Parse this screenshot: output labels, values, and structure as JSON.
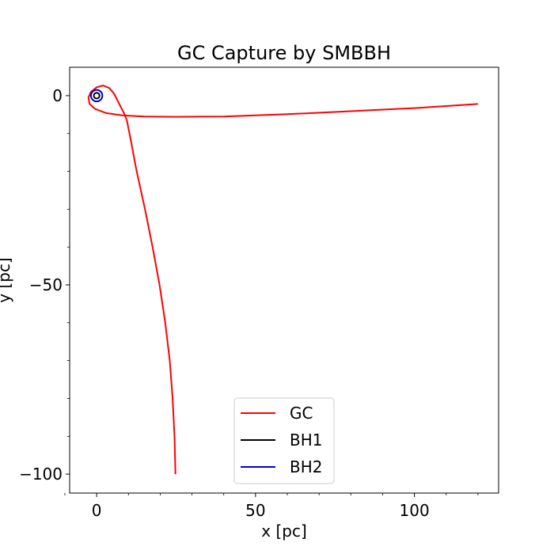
{
  "chart_data": {
    "type": "line",
    "title": "GC Capture by SMBBH",
    "xlabel": "x [pc]",
    "ylabel": "y [pc]",
    "xlim": [
      -8.5,
      126.5
    ],
    "ylim": [
      -105,
      7.5
    ],
    "xticks": [
      0,
      50,
      100
    ],
    "yticks": [
      0,
      -50,
      -100
    ],
    "xtick_labels": [
      "0",
      "50",
      "100"
    ],
    "ytick_labels": [
      "0",
      "−50",
      "−100"
    ],
    "grid": false,
    "legend_position": "lower-center",
    "series": [
      {
        "name": "GC",
        "color": "#ff0000",
        "points": [
          [
            24.8,
            -100
          ],
          [
            24.5,
            -90
          ],
          [
            23.9,
            -80
          ],
          [
            23.0,
            -70
          ],
          [
            21.6,
            -60
          ],
          [
            19.8,
            -50
          ],
          [
            17.6,
            -40
          ],
          [
            15.2,
            -30
          ],
          [
            12.6,
            -20
          ],
          [
            10.8,
            -12
          ],
          [
            9.5,
            -6.5
          ],
          [
            8.6,
            -4.6
          ],
          [
            7.0,
            -2.0
          ],
          [
            5.5,
            0.5
          ],
          [
            4.0,
            2.0
          ],
          [
            2.0,
            2.7
          ],
          [
            0.0,
            2.2
          ],
          [
            -1.8,
            1.0
          ],
          [
            -2.6,
            -0.5
          ],
          [
            -2.2,
            -2.2
          ],
          [
            -0.5,
            -3.5
          ],
          [
            3.0,
            -4.6
          ],
          [
            8.0,
            -5.2
          ],
          [
            15.0,
            -5.5
          ],
          [
            25.0,
            -5.6
          ],
          [
            40.0,
            -5.5
          ],
          [
            60.0,
            -4.9
          ],
          [
            80.0,
            -4.1
          ],
          [
            100.0,
            -3.3
          ],
          [
            120.0,
            -2.2
          ]
        ]
      },
      {
        "name": "BH1",
        "color": "#000000",
        "center": [
          0,
          0
        ],
        "radius": 0.9
      },
      {
        "name": "BH2",
        "color": "#0000cc",
        "center": [
          0,
          0
        ],
        "radius": 1.8
      }
    ]
  }
}
